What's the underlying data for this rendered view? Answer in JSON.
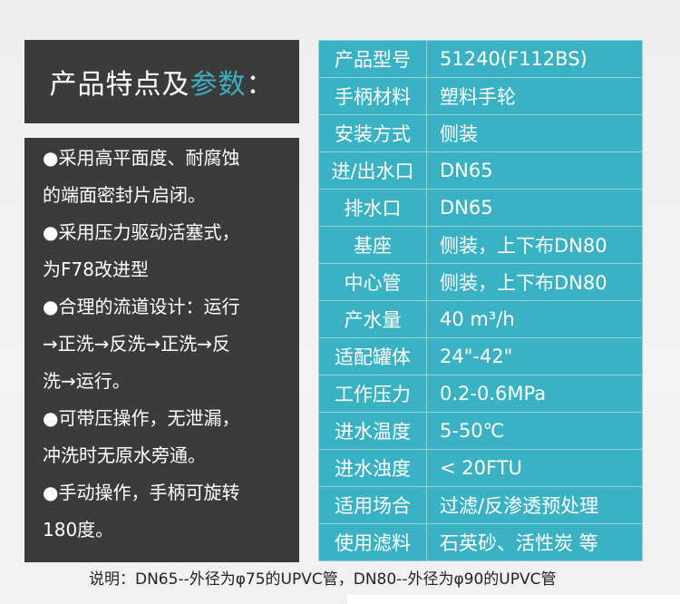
{
  "title": {
    "main": "产品特点及",
    "accent": "参数",
    "colon": "：",
    "accent_color": "#3bb0c2"
  },
  "features": [
    "●采用高平面度、耐腐蚀",
    "的端面密封片启闭。",
    "●采用压力驱动活塞式，",
    "为F78改进型",
    "●合理的流道设计：运行",
    "→正洗→反洗→正洗→反",
    "洗→运行。",
    "●可带压操作，无泄漏，",
    "冲洗时无原水旁通。",
    "●手动操作，手柄可旋转",
    "180度。"
  ],
  "specs": [
    {
      "k": "产品型号",
      "v": "51240(F112BS)"
    },
    {
      "k": "手柄材料",
      "v": "塑料手轮"
    },
    {
      "k": "安装方式",
      "v": "侧装"
    },
    {
      "k": "进/出水口",
      "v": "DN65"
    },
    {
      "k": "排水口",
      "v": "DN65"
    },
    {
      "k": "基座",
      "v": "侧装，上下布DN80"
    },
    {
      "k": "中心管",
      "v": "侧装，上下布DN80"
    },
    {
      "k": "产水量",
      "v": "40 m³/h"
    },
    {
      "k": "适配罐体",
      "v": "24\"-42\""
    },
    {
      "k": "工作压力",
      "v": "0.2-0.6MPa"
    },
    {
      "k": "进水温度",
      "v": "5-50℃"
    },
    {
      "k": "进水浊度",
      "v": "< 20FTU"
    },
    {
      "k": "适用场合",
      "v": "过滤/反渗透预处理"
    },
    {
      "k": "使用滤料",
      "v": "石英砂、活性炭 等"
    }
  ],
  "note": "说明：DN65--外径为φ75的UPVC管，DN80--外径为φ90的UPVC管",
  "colors": {
    "table": "#3ab2c4",
    "panel": "#3b3b3b"
  }
}
